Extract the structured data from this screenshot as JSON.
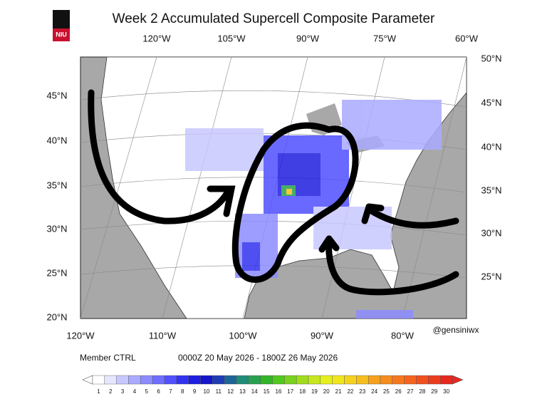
{
  "header": {
    "title": "Week 2 Accumulated Supercell Composite Parameter",
    "logo": "NIU"
  },
  "map": {
    "top_labels": [
      "120°W",
      "105°W",
      "90°W",
      "75°W",
      "60°W"
    ],
    "bottom_labels": [
      "120°W",
      "110°W",
      "100°W",
      "90°W",
      "80°W"
    ],
    "left_labels": [
      "45°N",
      "40°N",
      "35°N",
      "30°N",
      "25°N",
      "20°N"
    ],
    "right_labels": [
      "50°N",
      "45°N",
      "40°N",
      "35°N",
      "30°N",
      "25°N"
    ],
    "credit": "@gensiniwx"
  },
  "footer": {
    "member": "Member CTRL",
    "period": "0000Z 20  May  2026  - 1800Z 26  May  2026"
  },
  "colorbar": {
    "labels": [
      1,
      2,
      3,
      4,
      5,
      6,
      7,
      8,
      9,
      10,
      11,
      12,
      13,
      14,
      15,
      16,
      17,
      18,
      19,
      20,
      21,
      22,
      23,
      24,
      25,
      26,
      27,
      28,
      29,
      30
    ],
    "colors": [
      "#ffffff",
      "#e6e6ff",
      "#c8c8ff",
      "#aaaaff",
      "#8c8cff",
      "#6e6eff",
      "#5050ff",
      "#3232f0",
      "#1e1ee0",
      "#1414c8",
      "#1e3cb4",
      "#1e6496",
      "#1e8c78",
      "#28a050",
      "#32b428",
      "#50c81e",
      "#78d21e",
      "#a0dc1e",
      "#c8e61e",
      "#e6f01e",
      "#f0e61e",
      "#f5d21e",
      "#f5be1e",
      "#f5a01e",
      "#f58c1e",
      "#f5781e",
      "#f5641e",
      "#f0501e",
      "#eb3c1e",
      "#e6281e"
    ]
  }
}
